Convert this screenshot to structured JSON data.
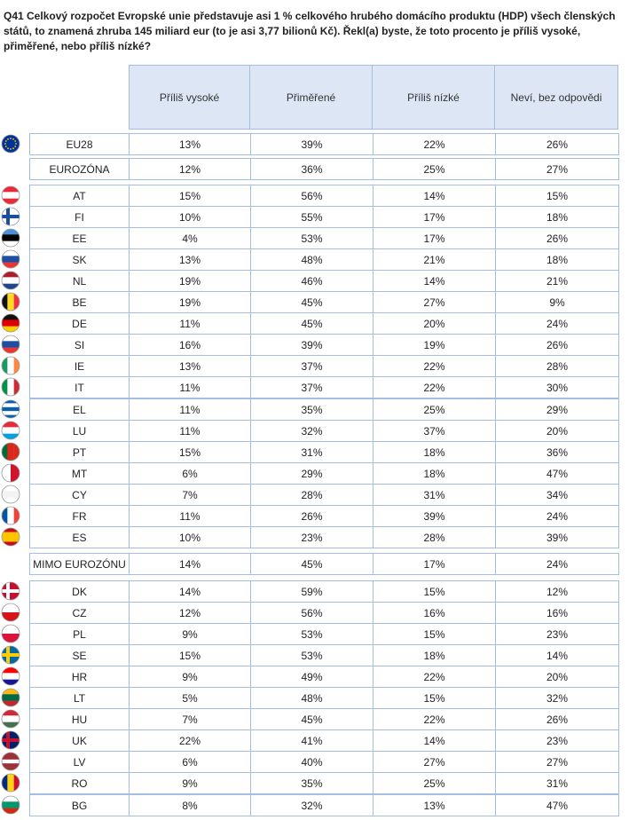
{
  "title": "Q41 Celkový rozpočet Evropské unie představuje asi 1 % celkového hrubého domácího produktu (HDP) všech členských států, to znamená zhruba 145 miliard eur (to je asi 3,77 bilionů Kč). Řekl(a) byste, že toto procento je příliš vysoké, přiměřené, nebo příliš nízké?",
  "table": {
    "columns": [
      "Příliš vysoké",
      "Přiměřené",
      "Příliš nízké",
      "Neví, bez odpovědi"
    ],
    "groups": [
      {
        "rows": [
          {
            "label": "EU28",
            "values": [
              "13%",
              "39%",
              "22%",
              "26%"
            ]
          }
        ]
      },
      {
        "rows": [
          {
            "label": "EUROZÓNA",
            "values": [
              "12%",
              "36%",
              "25%",
              "27%"
            ]
          }
        ]
      },
      {
        "rows": [
          {
            "label": "AT",
            "values": [
              "15%",
              "56%",
              "14%",
              "15%"
            ]
          },
          {
            "label": "FI",
            "values": [
              "10%",
              "55%",
              "17%",
              "18%"
            ]
          },
          {
            "label": "EE",
            "values": [
              "4%",
              "53%",
              "17%",
              "26%"
            ]
          },
          {
            "label": "SK",
            "values": [
              "13%",
              "48%",
              "21%",
              "18%"
            ]
          },
          {
            "label": "NL",
            "values": [
              "19%",
              "46%",
              "14%",
              "21%"
            ]
          },
          {
            "label": "BE",
            "values": [
              "19%",
              "45%",
              "27%",
              "9%"
            ]
          },
          {
            "label": "DE",
            "values": [
              "11%",
              "45%",
              "20%",
              "24%"
            ]
          },
          {
            "label": "SI",
            "values": [
              "16%",
              "39%",
              "19%",
              "26%"
            ]
          },
          {
            "label": "IE",
            "values": [
              "13%",
              "37%",
              "22%",
              "28%"
            ]
          },
          {
            "label": "IT",
            "values": [
              "11%",
              "37%",
              "22%",
              "30%"
            ]
          },
          {
            "label": "EL",
            "values": [
              "11%",
              "35%",
              "25%",
              "29%"
            ]
          },
          {
            "label": "LU",
            "values": [
              "11%",
              "32%",
              "37%",
              "20%"
            ]
          },
          {
            "label": "PT",
            "values": [
              "15%",
              "31%",
              "18%",
              "36%"
            ]
          },
          {
            "label": "MT",
            "values": [
              "6%",
              "29%",
              "18%",
              "47%"
            ]
          },
          {
            "label": "CY",
            "values": [
              "7%",
              "28%",
              "31%",
              "34%"
            ]
          },
          {
            "label": "FR",
            "values": [
              "11%",
              "26%",
              "39%",
              "24%"
            ]
          },
          {
            "label": "ES",
            "values": [
              "10%",
              "23%",
              "28%",
              "39%"
            ]
          }
        ]
      },
      {
        "rows": [
          {
            "label": "MIMO EUROZÓNU",
            "values": [
              "14%",
              "45%",
              "17%",
              "24%"
            ]
          }
        ]
      },
      {
        "rows": [
          {
            "label": "DK",
            "values": [
              "14%",
              "59%",
              "15%",
              "12%"
            ]
          },
          {
            "label": "CZ",
            "values": [
              "12%",
              "56%",
              "16%",
              "16%"
            ]
          },
          {
            "label": "PL",
            "values": [
              "9%",
              "53%",
              "15%",
              "23%"
            ]
          },
          {
            "label": "SE",
            "values": [
              "15%",
              "53%",
              "18%",
              "14%"
            ]
          },
          {
            "label": "HR",
            "values": [
              "9%",
              "49%",
              "22%",
              "20%"
            ]
          },
          {
            "label": "LT",
            "values": [
              "5%",
              "48%",
              "15%",
              "32%"
            ]
          },
          {
            "label": "HU",
            "values": [
              "7%",
              "45%",
              "22%",
              "26%"
            ]
          },
          {
            "label": "UK",
            "values": [
              "22%",
              "41%",
              "14%",
              "23%"
            ]
          },
          {
            "label": "LV",
            "values": [
              "6%",
              "40%",
              "27%",
              "27%"
            ]
          },
          {
            "label": "RO",
            "values": [
              "9%",
              "35%",
              "25%",
              "31%"
            ]
          },
          {
            "label": "BG",
            "values": [
              "8%",
              "32%",
              "13%",
              "47%"
            ]
          }
        ]
      }
    ]
  }
}
